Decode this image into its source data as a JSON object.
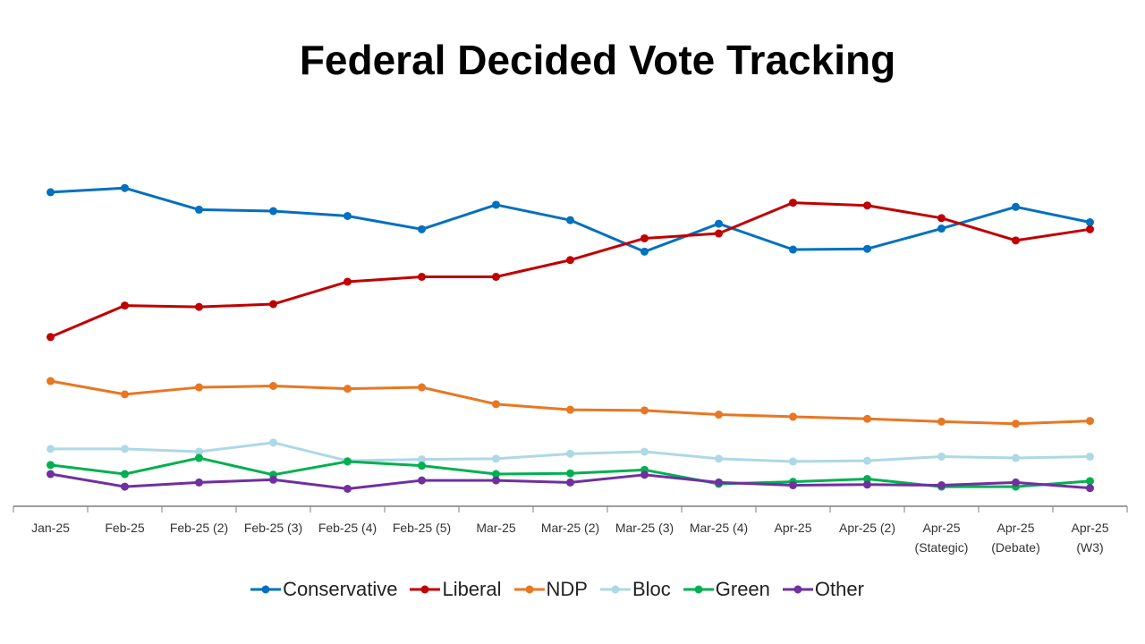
{
  "chart_data": {
    "type": "line",
    "title": "Federal Decided Vote Tracking",
    "xlabel": "",
    "ylabel": "",
    "ylim": [
      0,
      50
    ],
    "grid": false,
    "legend_position": "bottom",
    "categories": [
      [
        "Jan-25"
      ],
      [
        "Feb-25"
      ],
      [
        "Feb-25 (2)"
      ],
      [
        "Feb-25 (3)"
      ],
      [
        "Feb-25 (4)"
      ],
      [
        "Feb-25 (5)"
      ],
      [
        "Mar-25"
      ],
      [
        "Mar-25 (2)"
      ],
      [
        "Mar-25 (3)"
      ],
      [
        "Mar-25 (4)"
      ],
      [
        "Apr-25"
      ],
      [
        "Apr-25 (2)"
      ],
      [
        "Apr-25",
        "(Stategic)"
      ],
      [
        "Apr-25",
        "(Debate)"
      ],
      [
        "Apr-25",
        "(W3)"
      ]
    ],
    "series": [
      {
        "name": "Conservative",
        "color": "#0070C0",
        "values": [
          44.9,
          45.5,
          42.4,
          42.2,
          41.5,
          39.6,
          43.1,
          40.9,
          36.4,
          40.4,
          36.7,
          36.8,
          39.7,
          42.8,
          40.6
        ]
      },
      {
        "name": "Liberal",
        "color": "#C00000",
        "values": [
          24.2,
          28.7,
          28.5,
          28.9,
          32.1,
          32.8,
          32.8,
          35.2,
          38.3,
          39.0,
          43.4,
          43.0,
          41.2,
          38.0,
          39.6
        ]
      },
      {
        "name": "NDP",
        "color": "#E87722",
        "values": [
          17.9,
          16.0,
          17.0,
          17.2,
          16.8,
          17.0,
          14.6,
          13.8,
          13.7,
          13.1,
          12.8,
          12.5,
          12.1,
          11.8,
          12.2
        ]
      },
      {
        "name": "Bloc",
        "color": "#ADD8E6",
        "values": [
          8.2,
          8.2,
          7.8,
          9.1,
          6.5,
          6.7,
          6.8,
          7.5,
          7.8,
          6.8,
          6.4,
          6.5,
          7.1,
          6.9,
          7.1
        ]
      },
      {
        "name": "Green",
        "color": "#00B050",
        "values": [
          5.9,
          4.6,
          6.9,
          4.5,
          6.4,
          5.8,
          4.6,
          4.7,
          5.2,
          3.2,
          3.5,
          3.9,
          2.8,
          2.8,
          3.6
        ]
      },
      {
        "name": "Other",
        "color": "#7030A0",
        "values": [
          4.6,
          2.8,
          3.4,
          3.8,
          2.5,
          3.7,
          3.7,
          3.4,
          4.5,
          3.4,
          3.0,
          3.1,
          3.0,
          3.4,
          2.6
        ]
      }
    ]
  }
}
